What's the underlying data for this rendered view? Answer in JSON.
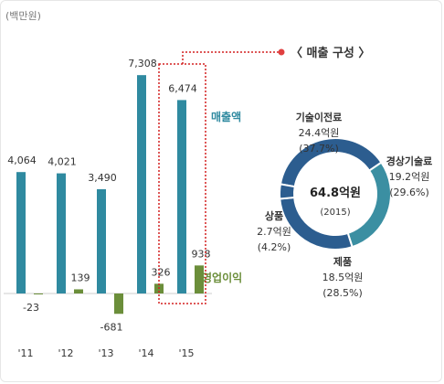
{
  "unit_label": "(백만원)",
  "colors": {
    "sales": "#2f8aa0",
    "profit": "#6b8e3a",
    "highlight": "#d42020",
    "donut": [
      "#2c5d8f",
      "#3b8fa2",
      "#2c5d8f",
      "#2c5d8f"
    ],
    "text": "#333333"
  },
  "chart_data": [
    {
      "type": "bar",
      "categories": [
        "'11",
        "'12",
        "'13",
        "'14",
        "'15"
      ],
      "series": [
        {
          "name": "매출액",
          "values": [
            4064,
            4021,
            3490,
            7308,
            6474
          ],
          "labels": [
            "4,064",
            "4,021",
            "3,490",
            "7,308",
            "6,474"
          ]
        },
        {
          "name": "영업이익",
          "values": [
            -23,
            139,
            -681,
            326,
            938
          ],
          "labels": [
            "-23",
            "139",
            "-681",
            "326",
            "938"
          ]
        }
      ],
      "highlight_category": "'15",
      "callout": "〈 매출 구성 〉"
    },
    {
      "type": "pie",
      "donut": true,
      "center_value": "64.8억원",
      "center_sub": "(2015)",
      "slices": [
        {
          "name": "기술이전료",
          "amount": "24.4억원",
          "percent_label": "(37.7%)",
          "value": 37.7
        },
        {
          "name": "경상기술료",
          "amount": "19.2억원",
          "percent_label": "(29.6%)",
          "value": 29.6
        },
        {
          "name": "제품",
          "amount": "18.5억원",
          "percent_label": "(28.5%)",
          "value": 28.5
        },
        {
          "name": "상품",
          "amount": "2.7억원",
          "percent_label": "(4.2%)",
          "value": 4.2
        }
      ]
    }
  ]
}
